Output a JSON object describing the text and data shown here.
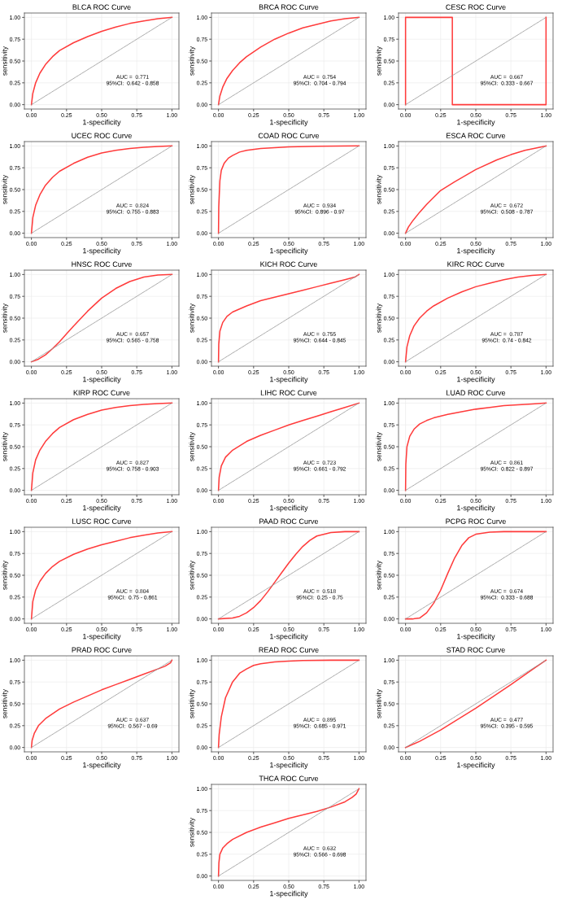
{
  "chart_data": [
    {
      "type": "line",
      "title": "BLCA ROC Curve",
      "xlabel": "1-specificity",
      "ylabel": "sensitivity",
      "xlim": [
        -0.05,
        1.05
      ],
      "ylim": [
        -0.05,
        1.05
      ],
      "grid": true,
      "annotations": [
        "AUC =  0.771",
        "95%CI:  0.642 - 0.858"
      ],
      "xticks": [
        {
          "value": 0,
          "label": "0.00"
        },
        {
          "value": 0.25,
          "label": "0.25"
        },
        {
          "value": 0.5,
          "label": "0.50"
        },
        {
          "value": 0.75,
          "label": "0.75"
        },
        {
          "value": 1,
          "label": "1.00"
        }
      ],
      "yticks": [
        {
          "value": 0,
          "label": "0.00"
        },
        {
          "value": 0.25,
          "label": "0.25"
        },
        {
          "value": 0.5,
          "label": "0.50"
        },
        {
          "value": 0.75,
          "label": "0.75"
        },
        {
          "value": 1,
          "label": "1.00"
        }
      ],
      "series": [
        {
          "color": "#ff3b3b",
          "line_style": "solid",
          "x": [
            0,
            0.01,
            0.03,
            0.06,
            0.1,
            0.15,
            0.2,
            0.3,
            0.4,
            0.5,
            0.6,
            0.7,
            0.8,
            0.9,
            1
          ],
          "values": [
            0,
            0.13,
            0.25,
            0.36,
            0.46,
            0.55,
            0.62,
            0.71,
            0.78,
            0.84,
            0.89,
            0.93,
            0.96,
            0.985,
            1
          ]
        },
        {
          "color": "#999999",
          "line_style": "dashed",
          "x": [
            0,
            1
          ],
          "values": [
            0,
            1
          ]
        }
      ]
    },
    {
      "type": "line",
      "title": "BRCA ROC Curve",
      "xlabel": "1-specificity",
      "ylabel": "sensitivity",
      "xlim": [
        -0.05,
        1.05
      ],
      "ylim": [
        -0.05,
        1.05
      ],
      "grid": true,
      "annotations": [
        "AUC =  0.754",
        "95%CI:  0.704 - 0.794"
      ],
      "xticks": [
        {
          "value": 0,
          "label": "0.00"
        },
        {
          "value": 0.25,
          "label": "0.25"
        },
        {
          "value": 0.5,
          "label": "0.50"
        },
        {
          "value": 0.75,
          "label": "0.75"
        },
        {
          "value": 1,
          "label": "1.00"
        }
      ],
      "yticks": [
        {
          "value": 0,
          "label": "0.00"
        },
        {
          "value": 0.25,
          "label": "0.25"
        },
        {
          "value": 0.5,
          "label": "0.50"
        },
        {
          "value": 0.75,
          "label": "0.75"
        },
        {
          "value": 1,
          "label": "1.00"
        }
      ],
      "series": [
        {
          "color": "#ff3b3b",
          "line_style": "solid",
          "x": [
            0,
            0.01,
            0.03,
            0.06,
            0.1,
            0.15,
            0.2,
            0.3,
            0.4,
            0.5,
            0.6,
            0.7,
            0.8,
            0.9,
            1
          ],
          "values": [
            0,
            0.1,
            0.2,
            0.3,
            0.39,
            0.48,
            0.55,
            0.66,
            0.75,
            0.82,
            0.88,
            0.92,
            0.96,
            0.985,
            1
          ]
        },
        {
          "color": "#999999",
          "line_style": "dashed",
          "x": [
            0,
            1
          ],
          "values": [
            0,
            1
          ]
        }
      ]
    },
    {
      "type": "line",
      "title": "CESC ROC Curve",
      "xlabel": "1-specificity",
      "ylabel": "sensitivity",
      "xlim": [
        -0.05,
        1.05
      ],
      "ylim": [
        -0.05,
        1.05
      ],
      "grid": true,
      "annotations": [
        "AUC =  0.667",
        "95%CI:  0.333 - 0.667"
      ],
      "xticks": [
        {
          "value": 0,
          "label": "0.00"
        },
        {
          "value": 0.25,
          "label": "0.25"
        },
        {
          "value": 0.5,
          "label": "0.50"
        },
        {
          "value": 0.75,
          "label": "0.75"
        },
        {
          "value": 1,
          "label": "1.00"
        }
      ],
      "yticks": [
        {
          "value": 0,
          "label": "0.00"
        },
        {
          "value": 0.25,
          "label": "0.25"
        },
        {
          "value": 0.5,
          "label": "0.50"
        },
        {
          "value": 0.75,
          "label": "0.75"
        },
        {
          "value": 1,
          "label": "1.00"
        }
      ],
      "series": [
        {
          "color": "#ff3b3b",
          "line_style": "solid",
          "x": [
            0,
            0,
            0.333,
            0.333,
            1,
            1
          ],
          "values": [
            0,
            1,
            1,
            0,
            0,
            1
          ]
        },
        {
          "color": "#999999",
          "line_style": "dashed",
          "x": [
            0,
            1
          ],
          "values": [
            0,
            1
          ]
        }
      ]
    },
    {
      "type": "line",
      "title": "UCEC ROC Curve",
      "xlabel": "1-specificity",
      "ylabel": "sensitivity",
      "xlim": [
        -0.05,
        1.05
      ],
      "ylim": [
        -0.05,
        1.05
      ],
      "grid": true,
      "annotations": [
        "AUC =  0.824",
        "95%CI:  0.755 - 0.883"
      ],
      "xticks": [
        {
          "value": 0,
          "label": "0.00"
        },
        {
          "value": 0.25,
          "label": "0.25"
        },
        {
          "value": 0.5,
          "label": "0.50"
        },
        {
          "value": 0.75,
          "label": "0.75"
        },
        {
          "value": 1,
          "label": "1.00"
        }
      ],
      "yticks": [
        {
          "value": 0,
          "label": "0.00"
        },
        {
          "value": 0.25,
          "label": "0.25"
        },
        {
          "value": 0.5,
          "label": "0.50"
        },
        {
          "value": 0.75,
          "label": "0.75"
        },
        {
          "value": 1,
          "label": "1.00"
        }
      ],
      "series": [
        {
          "color": "#ff3b3b",
          "line_style": "solid",
          "x": [
            0,
            0.01,
            0.03,
            0.06,
            0.1,
            0.15,
            0.2,
            0.3,
            0.4,
            0.5,
            0.6,
            0.7,
            0.8,
            0.9,
            1
          ],
          "values": [
            0,
            0.18,
            0.32,
            0.44,
            0.55,
            0.64,
            0.71,
            0.8,
            0.87,
            0.92,
            0.95,
            0.97,
            0.985,
            0.995,
            1
          ]
        },
        {
          "color": "#999999",
          "line_style": "dashed",
          "x": [
            0,
            1
          ],
          "values": [
            0,
            1
          ]
        }
      ]
    },
    {
      "type": "line",
      "title": "COAD ROC Curve",
      "xlabel": "1-specificity",
      "ylabel": "sensitivity",
      "xlim": [
        -0.05,
        1.05
      ],
      "ylim": [
        -0.05,
        1.05
      ],
      "grid": true,
      "annotations": [
        "AUC =  0.934",
        "95%CI:  0.896 - 0.97"
      ],
      "xticks": [
        {
          "value": 0,
          "label": "0.00"
        },
        {
          "value": 0.25,
          "label": "0.25"
        },
        {
          "value": 0.5,
          "label": "0.50"
        },
        {
          "value": 0.75,
          "label": "0.75"
        },
        {
          "value": 1,
          "label": "1.00"
        }
      ],
      "yticks": [
        {
          "value": 0,
          "label": "0.00"
        },
        {
          "value": 0.25,
          "label": "0.25"
        },
        {
          "value": 0.5,
          "label": "0.50"
        },
        {
          "value": 0.75,
          "label": "0.75"
        },
        {
          "value": 1,
          "label": "1.00"
        }
      ],
      "series": [
        {
          "color": "#ff3b3b",
          "line_style": "solid",
          "x": [
            0,
            0.002,
            0.01,
            0.02,
            0.04,
            0.07,
            0.1,
            0.15,
            0.2,
            0.3,
            0.4,
            0.5,
            0.7,
            1
          ],
          "values": [
            0,
            0.3,
            0.6,
            0.72,
            0.8,
            0.86,
            0.89,
            0.93,
            0.95,
            0.97,
            0.98,
            0.99,
            0.997,
            1
          ]
        },
        {
          "color": "#999999",
          "line_style": "dashed",
          "x": [
            0,
            1
          ],
          "values": [
            0,
            1
          ]
        }
      ]
    },
    {
      "type": "line",
      "title": "ESCA ROC Curve",
      "xlabel": "1-specificity",
      "ylabel": "sensitivity",
      "xlim": [
        -0.05,
        1.05
      ],
      "ylim": [
        -0.05,
        1.05
      ],
      "grid": true,
      "annotations": [
        "AUC =  0.672",
        "95%CI:  0.508 - 0.787"
      ],
      "xticks": [
        {
          "value": 0,
          "label": "0.00"
        },
        {
          "value": 0.25,
          "label": "0.25"
        },
        {
          "value": 0.5,
          "label": "0.50"
        },
        {
          "value": 0.75,
          "label": "0.75"
        },
        {
          "value": 1,
          "label": "1.00"
        }
      ],
      "yticks": [
        {
          "value": 0,
          "label": "0.00"
        },
        {
          "value": 0.25,
          "label": "0.25"
        },
        {
          "value": 0.5,
          "label": "0.50"
        },
        {
          "value": 0.75,
          "label": "0.75"
        },
        {
          "value": 1,
          "label": "1.00"
        }
      ],
      "series": [
        {
          "color": "#ff3b3b",
          "line_style": "solid",
          "x": [
            0,
            0.02,
            0.05,
            0.1,
            0.15,
            0.25,
            0.35,
            0.5,
            0.65,
            0.75,
            0.85,
            1
          ],
          "values": [
            0,
            0.07,
            0.14,
            0.24,
            0.33,
            0.49,
            0.59,
            0.73,
            0.84,
            0.9,
            0.95,
            1
          ]
        },
        {
          "color": "#999999",
          "line_style": "dashed",
          "x": [
            0,
            1
          ],
          "values": [
            0,
            1
          ]
        }
      ]
    },
    {
      "type": "line",
      "title": "HNSC ROC Curve",
      "xlabel": "1-specificity",
      "ylabel": "sensitivity",
      "xlim": [
        -0.05,
        1.05
      ],
      "ylim": [
        -0.05,
        1.05
      ],
      "grid": true,
      "annotations": [
        "AUC =  0.657",
        "95%CI:  0.565 - 0.758"
      ],
      "xticks": [
        {
          "value": 0,
          "label": "0.00"
        },
        {
          "value": 0.25,
          "label": "0.25"
        },
        {
          "value": 0.5,
          "label": "0.50"
        },
        {
          "value": 0.75,
          "label": "0.75"
        },
        {
          "value": 1,
          "label": "1.00"
        }
      ],
      "yticks": [
        {
          "value": 0,
          "label": "0.00"
        },
        {
          "value": 0.25,
          "label": "0.25"
        },
        {
          "value": 0.5,
          "label": "0.50"
        },
        {
          "value": 0.75,
          "label": "0.75"
        },
        {
          "value": 1,
          "label": "1.00"
        }
      ],
      "series": [
        {
          "color": "#ff3b3b",
          "line_style": "solid",
          "x": [
            0,
            0.05,
            0.1,
            0.15,
            0.2,
            0.25,
            0.3,
            0.4,
            0.5,
            0.6,
            0.7,
            0.8,
            0.9,
            1
          ],
          "values": [
            0,
            0.03,
            0.08,
            0.15,
            0.23,
            0.32,
            0.41,
            0.58,
            0.73,
            0.84,
            0.92,
            0.97,
            0.995,
            1
          ]
        },
        {
          "color": "#999999",
          "line_style": "dashed",
          "x": [
            0,
            1
          ],
          "values": [
            0,
            1
          ]
        }
      ]
    },
    {
      "type": "line",
      "title": "KICH ROC Curve",
      "xlabel": "1-specificity",
      "ylabel": "sensitivity",
      "xlim": [
        -0.05,
        1.05
      ],
      "ylim": [
        -0.05,
        1.05
      ],
      "grid": true,
      "annotations": [
        "AUC =  0.755",
        "95%CI:  0.644 - 0.845"
      ],
      "xticks": [
        {
          "value": 0,
          "label": "0.00"
        },
        {
          "value": 0.25,
          "label": "0.25"
        },
        {
          "value": 0.5,
          "label": "0.50"
        },
        {
          "value": 0.75,
          "label": "0.75"
        },
        {
          "value": 1,
          "label": "1.00"
        }
      ],
      "yticks": [
        {
          "value": 0,
          "label": "0.00"
        },
        {
          "value": 0.25,
          "label": "0.25"
        },
        {
          "value": 0.5,
          "label": "0.50"
        },
        {
          "value": 0.75,
          "label": "0.75"
        },
        {
          "value": 1,
          "label": "1.00"
        }
      ],
      "series": [
        {
          "color": "#ff3b3b",
          "line_style": "solid",
          "x": [
            0,
            0.002,
            0.01,
            0.03,
            0.06,
            0.1,
            0.2,
            0.3,
            0.4,
            0.5,
            0.6,
            0.7,
            0.8,
            0.9,
            0.97,
            1
          ],
          "values": [
            0,
            0.2,
            0.35,
            0.45,
            0.52,
            0.57,
            0.64,
            0.7,
            0.74,
            0.78,
            0.82,
            0.86,
            0.9,
            0.94,
            0.97,
            1
          ]
        },
        {
          "color": "#999999",
          "line_style": "dashed",
          "x": [
            0,
            1
          ],
          "values": [
            0,
            1
          ]
        }
      ]
    },
    {
      "type": "line",
      "title": "KIRC ROC Curve",
      "xlabel": "1-specificity",
      "ylabel": "sensitivity",
      "xlim": [
        -0.05,
        1.05
      ],
      "ylim": [
        -0.05,
        1.05
      ],
      "grid": true,
      "annotations": [
        "AUC =  0.787",
        "95%CI:  0.74 - 0.842"
      ],
      "xticks": [
        {
          "value": 0,
          "label": "0.00"
        },
        {
          "value": 0.25,
          "label": "0.25"
        },
        {
          "value": 0.5,
          "label": "0.50"
        },
        {
          "value": 0.75,
          "label": "0.75"
        },
        {
          "value": 1,
          "label": "1.00"
        }
      ],
      "yticks": [
        {
          "value": 0,
          "label": "0.00"
        },
        {
          "value": 0.25,
          "label": "0.25"
        },
        {
          "value": 0.5,
          "label": "0.50"
        },
        {
          "value": 0.75,
          "label": "0.75"
        },
        {
          "value": 1,
          "label": "1.00"
        }
      ],
      "series": [
        {
          "color": "#ff3b3b",
          "line_style": "solid",
          "x": [
            0,
            0.01,
            0.03,
            0.06,
            0.1,
            0.15,
            0.2,
            0.3,
            0.4,
            0.5,
            0.6,
            0.7,
            0.8,
            0.9,
            1
          ],
          "values": [
            0,
            0.17,
            0.3,
            0.41,
            0.5,
            0.58,
            0.64,
            0.73,
            0.8,
            0.86,
            0.9,
            0.94,
            0.97,
            0.99,
            1
          ]
        },
        {
          "color": "#999999",
          "line_style": "dashed",
          "x": [
            0,
            1
          ],
          "values": [
            0,
            1
          ]
        }
      ]
    },
    {
      "type": "line",
      "title": "KIRP ROC Curve",
      "xlabel": "1-specificity",
      "ylabel": "sensitivity",
      "xlim": [
        -0.05,
        1.05
      ],
      "ylim": [
        -0.05,
        1.05
      ],
      "grid": true,
      "annotations": [
        "AUC =  0.827",
        "95%CI:  0.758 - 0.903"
      ],
      "xticks": [
        {
          "value": 0,
          "label": "0.00"
        },
        {
          "value": 0.25,
          "label": "0.25"
        },
        {
          "value": 0.5,
          "label": "0.50"
        },
        {
          "value": 0.75,
          "label": "0.75"
        },
        {
          "value": 1,
          "label": "1.00"
        }
      ],
      "yticks": [
        {
          "value": 0,
          "label": "0.00"
        },
        {
          "value": 0.25,
          "label": "0.25"
        },
        {
          "value": 0.5,
          "label": "0.50"
        },
        {
          "value": 0.75,
          "label": "0.75"
        },
        {
          "value": 1,
          "label": "1.00"
        }
      ],
      "series": [
        {
          "color": "#ff3b3b",
          "line_style": "solid",
          "x": [
            0,
            0.01,
            0.03,
            0.06,
            0.1,
            0.15,
            0.2,
            0.3,
            0.4,
            0.5,
            0.6,
            0.7,
            0.8,
            0.9,
            1
          ],
          "values": [
            0,
            0.2,
            0.35,
            0.46,
            0.56,
            0.65,
            0.72,
            0.81,
            0.87,
            0.92,
            0.95,
            0.97,
            0.985,
            0.995,
            1
          ]
        },
        {
          "color": "#999999",
          "line_style": "dashed",
          "x": [
            0,
            1
          ],
          "values": [
            0,
            1
          ]
        }
      ]
    },
    {
      "type": "line",
      "title": "LIHC ROC Curve",
      "xlabel": "1-specificity",
      "ylabel": "sensitivity",
      "xlim": [
        -0.05,
        1.05
      ],
      "ylim": [
        -0.05,
        1.05
      ],
      "grid": true,
      "annotations": [
        "AUC =  0.723",
        "95%CI:  0.661 - 0.792"
      ],
      "xticks": [
        {
          "value": 0,
          "label": "0.00"
        },
        {
          "value": 0.25,
          "label": "0.25"
        },
        {
          "value": 0.5,
          "label": "0.50"
        },
        {
          "value": 0.75,
          "label": "0.75"
        },
        {
          "value": 1,
          "label": "1.00"
        }
      ],
      "yticks": [
        {
          "value": 0,
          "label": "0.00"
        },
        {
          "value": 0.25,
          "label": "0.25"
        },
        {
          "value": 0.5,
          "label": "0.50"
        },
        {
          "value": 0.75,
          "label": "0.75"
        },
        {
          "value": 1,
          "label": "1.00"
        }
      ],
      "series": [
        {
          "color": "#ff3b3b",
          "line_style": "solid",
          "x": [
            0,
            0.005,
            0.02,
            0.05,
            0.1,
            0.2,
            0.3,
            0.4,
            0.5,
            0.6,
            0.7,
            0.8,
            0.9,
            1
          ],
          "values": [
            0,
            0.15,
            0.28,
            0.38,
            0.46,
            0.56,
            0.63,
            0.69,
            0.75,
            0.8,
            0.85,
            0.9,
            0.95,
            1
          ]
        },
        {
          "color": "#999999",
          "line_style": "dashed",
          "x": [
            0,
            1
          ],
          "values": [
            0,
            1
          ]
        }
      ]
    },
    {
      "type": "line",
      "title": "LUAD ROC Curve",
      "xlabel": "1-specificity",
      "ylabel": "sensitivity",
      "xlim": [
        -0.05,
        1.05
      ],
      "ylim": [
        -0.05,
        1.05
      ],
      "grid": true,
      "annotations": [
        "AUC =  0.861",
        "95%CI:  0.822 - 0.897"
      ],
      "xticks": [
        {
          "value": 0,
          "label": "0.00"
        },
        {
          "value": 0.25,
          "label": "0.25"
        },
        {
          "value": 0.5,
          "label": "0.50"
        },
        {
          "value": 0.75,
          "label": "0.75"
        },
        {
          "value": 1,
          "label": "1.00"
        }
      ],
      "yticks": [
        {
          "value": 0,
          "label": "0.00"
        },
        {
          "value": 0.25,
          "label": "0.25"
        },
        {
          "value": 0.5,
          "label": "0.50"
        },
        {
          "value": 0.75,
          "label": "0.75"
        },
        {
          "value": 1,
          "label": "1.00"
        }
      ],
      "series": [
        {
          "color": "#ff3b3b",
          "line_style": "solid",
          "x": [
            0,
            0.002,
            0.01,
            0.03,
            0.06,
            0.1,
            0.15,
            0.2,
            0.3,
            0.4,
            0.5,
            0.6,
            0.7,
            0.8,
            0.9,
            1
          ],
          "values": [
            0,
            0.3,
            0.5,
            0.62,
            0.7,
            0.76,
            0.8,
            0.83,
            0.87,
            0.9,
            0.93,
            0.95,
            0.97,
            0.98,
            0.99,
            1
          ]
        },
        {
          "color": "#999999",
          "line_style": "dashed",
          "x": [
            0,
            1
          ],
          "values": [
            0,
            1
          ]
        }
      ]
    },
    {
      "type": "line",
      "title": "LUSC ROC Curve",
      "xlabel": "1-specificity",
      "ylabel": "sensitivity",
      "xlim": [
        -0.05,
        1.05
      ],
      "ylim": [
        -0.05,
        1.05
      ],
      "grid": true,
      "annotations": [
        "AUC =  0.804",
        "95%CI:  0.75 - 0.861"
      ],
      "xticks": [
        {
          "value": 0,
          "label": "0.00"
        },
        {
          "value": 0.25,
          "label": "0.25"
        },
        {
          "value": 0.5,
          "label": "0.50"
        },
        {
          "value": 0.75,
          "label": "0.75"
        },
        {
          "value": 1,
          "label": "1.00"
        }
      ],
      "yticks": [
        {
          "value": 0,
          "label": "0.00"
        },
        {
          "value": 0.25,
          "label": "0.25"
        },
        {
          "value": 0.5,
          "label": "0.50"
        },
        {
          "value": 0.75,
          "label": "0.75"
        },
        {
          "value": 1,
          "label": "1.00"
        }
      ],
      "series": [
        {
          "color": "#ff3b3b",
          "line_style": "solid",
          "x": [
            0,
            0.01,
            0.03,
            0.06,
            0.1,
            0.15,
            0.2,
            0.3,
            0.4,
            0.5,
            0.6,
            0.7,
            0.8,
            0.9,
            1
          ],
          "values": [
            0,
            0.2,
            0.33,
            0.43,
            0.52,
            0.6,
            0.66,
            0.74,
            0.8,
            0.85,
            0.89,
            0.93,
            0.96,
            0.985,
            1
          ]
        },
        {
          "color": "#999999",
          "line_style": "dashed",
          "x": [
            0,
            1
          ],
          "values": [
            0,
            1
          ]
        }
      ]
    },
    {
      "type": "line",
      "title": "PAAD ROC Curve",
      "xlabel": "1-specificity",
      "ylabel": "sensitivity",
      "xlim": [
        -0.05,
        1.05
      ],
      "ylim": [
        -0.05,
        1.05
      ],
      "grid": true,
      "annotations": [
        "AUC =  0.518",
        "95%CI:  0.25 - 0.75"
      ],
      "xticks": [
        {
          "value": 0,
          "label": "0.00"
        },
        {
          "value": 0.25,
          "label": "0.25"
        },
        {
          "value": 0.5,
          "label": "0.50"
        },
        {
          "value": 0.75,
          "label": "0.75"
        },
        {
          "value": 1,
          "label": "1.00"
        }
      ],
      "yticks": [
        {
          "value": 0,
          "label": "0.00"
        },
        {
          "value": 0.25,
          "label": "0.25"
        },
        {
          "value": 0.5,
          "label": "0.50"
        },
        {
          "value": 0.75,
          "label": "0.75"
        },
        {
          "value": 1,
          "label": "1.00"
        }
      ],
      "series": [
        {
          "color": "#ff3b3b",
          "line_style": "solid",
          "x": [
            0,
            0.1,
            0.15,
            0.2,
            0.25,
            0.3,
            0.35,
            0.4,
            0.45,
            0.5,
            0.55,
            0.6,
            0.65,
            0.7,
            0.8,
            0.9,
            1
          ],
          "values": [
            0,
            0.01,
            0.03,
            0.07,
            0.13,
            0.21,
            0.31,
            0.42,
            0.53,
            0.64,
            0.74,
            0.83,
            0.9,
            0.95,
            0.99,
            1,
            1
          ]
        },
        {
          "color": "#999999",
          "line_style": "dashed",
          "x": [
            0,
            1
          ],
          "values": [
            0,
            1
          ]
        }
      ]
    },
    {
      "type": "line",
      "title": "PCPG ROC Curve",
      "xlabel": "1-specificity",
      "ylabel": "sensitivity",
      "xlim": [
        -0.05,
        1.05
      ],
      "ylim": [
        -0.05,
        1.05
      ],
      "grid": true,
      "annotations": [
        "AUC =  0.674",
        "95%CI:  0.333 - 0.688"
      ],
      "xticks": [
        {
          "value": 0,
          "label": "0.00"
        },
        {
          "value": 0.25,
          "label": "0.25"
        },
        {
          "value": 0.5,
          "label": "0.50"
        },
        {
          "value": 0.75,
          "label": "0.75"
        },
        {
          "value": 1,
          "label": "1.00"
        }
      ],
      "yticks": [
        {
          "value": 0,
          "label": "0.00"
        },
        {
          "value": 0.25,
          "label": "0.25"
        },
        {
          "value": 0.5,
          "label": "0.50"
        },
        {
          "value": 0.75,
          "label": "0.75"
        },
        {
          "value": 1,
          "label": "1.00"
        }
      ],
      "series": [
        {
          "color": "#ff3b3b",
          "line_style": "solid",
          "x": [
            0,
            0.05,
            0.1,
            0.15,
            0.2,
            0.25,
            0.3,
            0.35,
            0.4,
            0.45,
            0.5,
            0.6,
            0.7,
            1
          ],
          "values": [
            0,
            0,
            0.01,
            0.07,
            0.18,
            0.33,
            0.52,
            0.7,
            0.84,
            0.93,
            0.97,
            0.995,
            1,
            1
          ]
        },
        {
          "color": "#999999",
          "line_style": "dashed",
          "x": [
            0,
            1
          ],
          "values": [
            0,
            1
          ]
        }
      ]
    },
    {
      "type": "line",
      "title": "PRAD ROC Curve",
      "xlabel": "1-specificity",
      "ylabel": "sensitivity",
      "xlim": [
        -0.05,
        1.05
      ],
      "ylim": [
        -0.05,
        1.05
      ],
      "grid": true,
      "annotations": [
        "AUC =  0.637",
        "95%CI:  0.567 - 0.69"
      ],
      "xticks": [
        {
          "value": 0,
          "label": "0.00"
        },
        {
          "value": 0.25,
          "label": "0.25"
        },
        {
          "value": 0.5,
          "label": "0.50"
        },
        {
          "value": 0.75,
          "label": "0.75"
        },
        {
          "value": 1,
          "label": "1.00"
        }
      ],
      "yticks": [
        {
          "value": 0,
          "label": "0.00"
        },
        {
          "value": 0.25,
          "label": "0.25"
        },
        {
          "value": 0.5,
          "label": "0.50"
        },
        {
          "value": 0.75,
          "label": "0.75"
        },
        {
          "value": 1,
          "label": "1.00"
        }
      ],
      "series": [
        {
          "color": "#ff3b3b",
          "line_style": "solid",
          "x": [
            0,
            0.005,
            0.02,
            0.05,
            0.1,
            0.2,
            0.3,
            0.4,
            0.5,
            0.6,
            0.7,
            0.8,
            0.9,
            0.95,
            0.99,
            1
          ],
          "values": [
            0,
            0.08,
            0.16,
            0.25,
            0.33,
            0.44,
            0.52,
            0.59,
            0.66,
            0.72,
            0.78,
            0.84,
            0.9,
            0.93,
            0.97,
            1
          ]
        },
        {
          "color": "#999999",
          "line_style": "dashed",
          "x": [
            0,
            1
          ],
          "values": [
            0,
            1
          ]
        }
      ]
    },
    {
      "type": "line",
      "title": "READ ROC Curve",
      "xlabel": "1-specificity",
      "ylabel": "sensitivity",
      "xlim": [
        -0.05,
        1.05
      ],
      "ylim": [
        -0.05,
        1.05
      ],
      "grid": true,
      "annotations": [
        "AUC =  0.895",
        "95%CI:  0.685 - 0.971"
      ],
      "xticks": [
        {
          "value": 0,
          "label": "0.00"
        },
        {
          "value": 0.25,
          "label": "0.25"
        },
        {
          "value": 0.5,
          "label": "0.50"
        },
        {
          "value": 0.75,
          "label": "0.75"
        },
        {
          "value": 1,
          "label": "1.00"
        }
      ],
      "yticks": [
        {
          "value": 0,
          "label": "0.00"
        },
        {
          "value": 0.25,
          "label": "0.25"
        },
        {
          "value": 0.5,
          "label": "0.50"
        },
        {
          "value": 0.75,
          "label": "0.75"
        },
        {
          "value": 1,
          "label": "1.00"
        }
      ],
      "series": [
        {
          "color": "#ff3b3b",
          "line_style": "solid",
          "x": [
            0,
            0.005,
            0.02,
            0.05,
            0.1,
            0.15,
            0.2,
            0.25,
            0.3,
            0.4,
            0.5,
            0.6,
            0.8,
            1
          ],
          "values": [
            0,
            0.15,
            0.35,
            0.57,
            0.75,
            0.85,
            0.9,
            0.94,
            0.96,
            0.98,
            0.99,
            0.997,
            1,
            1
          ]
        },
        {
          "color": "#999999",
          "line_style": "dashed",
          "x": [
            0,
            1
          ],
          "values": [
            0,
            1
          ]
        }
      ]
    },
    {
      "type": "line",
      "title": "STAD ROC Curve",
      "xlabel": "1-specificity",
      "ylabel": "sensitivity",
      "xlim": [
        -0.05,
        1.05
      ],
      "ylim": [
        -0.05,
        1.05
      ],
      "grid": true,
      "annotations": [
        "AUC =  0.477",
        "95%CI:  0.395 - 0.595"
      ],
      "xticks": [
        {
          "value": 0,
          "label": "0.00"
        },
        {
          "value": 0.25,
          "label": "0.25"
        },
        {
          "value": 0.5,
          "label": "0.50"
        },
        {
          "value": 0.75,
          "label": "0.75"
        },
        {
          "value": 1,
          "label": "1.00"
        }
      ],
      "yticks": [
        {
          "value": 0,
          "label": "0.00"
        },
        {
          "value": 0.25,
          "label": "0.25"
        },
        {
          "value": 0.5,
          "label": "0.50"
        },
        {
          "value": 0.75,
          "label": "0.75"
        },
        {
          "value": 1,
          "label": "1.00"
        }
      ],
      "series": [
        {
          "color": "#ff3b3b",
          "line_style": "solid",
          "x": [
            0,
            0.1,
            0.25,
            0.5,
            0.75,
            0.9,
            1
          ],
          "values": [
            0,
            0.07,
            0.2,
            0.45,
            0.72,
            0.89,
            1
          ]
        },
        {
          "color": "#999999",
          "line_style": "dashed",
          "x": [
            0,
            1
          ],
          "values": [
            0,
            1
          ]
        }
      ]
    },
    {
      "type": "line",
      "title": "THCA ROC Curve",
      "xlabel": "1-specificity",
      "ylabel": "sensitivity",
      "xlim": [
        -0.05,
        1.05
      ],
      "ylim": [
        -0.05,
        1.05
      ],
      "grid": true,
      "annotations": [
        "AUC =  0.632",
        "95%CI:  0.566 - 0.698"
      ],
      "xticks": [
        {
          "value": 0,
          "label": "0.00"
        },
        {
          "value": 0.25,
          "label": "0.25"
        },
        {
          "value": 0.5,
          "label": "0.50"
        },
        {
          "value": 0.75,
          "label": "0.75"
        },
        {
          "value": 1,
          "label": "1.00"
        }
      ],
      "yticks": [
        {
          "value": 0,
          "label": "0.00"
        },
        {
          "value": 0.25,
          "label": "0.25"
        },
        {
          "value": 0.5,
          "label": "0.50"
        },
        {
          "value": 0.75,
          "label": "0.75"
        },
        {
          "value": 1,
          "label": "1.00"
        }
      ],
      "series": [
        {
          "color": "#ff3b3b",
          "line_style": "solid",
          "x": [
            0,
            0.003,
            0.01,
            0.03,
            0.06,
            0.1,
            0.2,
            0.3,
            0.4,
            0.5,
            0.6,
            0.7,
            0.8,
            0.9,
            0.95,
            0.98,
            1
          ],
          "values": [
            0,
            0.15,
            0.25,
            0.32,
            0.37,
            0.42,
            0.5,
            0.56,
            0.61,
            0.66,
            0.7,
            0.74,
            0.79,
            0.85,
            0.9,
            0.94,
            1
          ]
        },
        {
          "color": "#999999",
          "line_style": "dashed",
          "x": [
            0,
            1
          ],
          "values": [
            0,
            1
          ]
        }
      ]
    }
  ]
}
